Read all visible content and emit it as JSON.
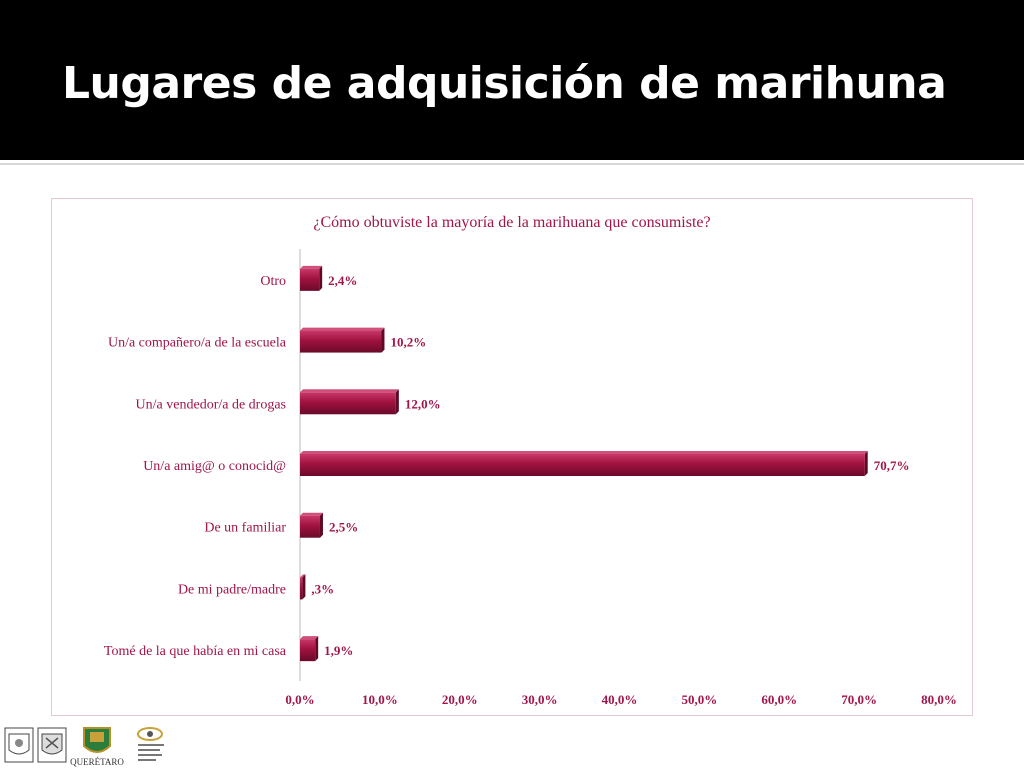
{
  "slide": {
    "title": "Lugares de adquisición de marihuna"
  },
  "colors": {
    "bar_fill": "#a0123f",
    "bar_dark": "#5e0a24",
    "text_accent": "#a0154a",
    "title_bg": "#000000"
  },
  "chart_data": {
    "type": "bar",
    "orientation": "horizontal",
    "title": "¿Cómo obtuviste la mayoría de la marihuana que consumiste?",
    "categories": [
      "Otro",
      "Un/a compañero/a de la escuela",
      "Un/a vendedor/a de drogas",
      "Un/a amig@ o conocid@",
      "De un familiar",
      "De mi padre/madre",
      "Tomé de la que había en mi casa"
    ],
    "values": [
      2.4,
      10.2,
      12.0,
      70.7,
      2.5,
      0.3,
      1.9
    ],
    "value_labels": [
      "2,4%",
      "10,2%",
      "12,0%",
      "70,7%",
      "2,5%",
      ",3%",
      "1,9%"
    ],
    "xlim": [
      0,
      80
    ],
    "ticks": [
      0,
      10,
      20,
      30,
      40,
      50,
      60,
      70,
      80
    ],
    "tick_labels": [
      "0,0%",
      "10,0%",
      "20,0%",
      "30,0%",
      "40,0%",
      "50,0%",
      "60,0%",
      "70,0%",
      "80,0%"
    ],
    "grid": false,
    "legend": "none"
  },
  "footer": {
    "logo_city": "QUERÉTARO"
  }
}
